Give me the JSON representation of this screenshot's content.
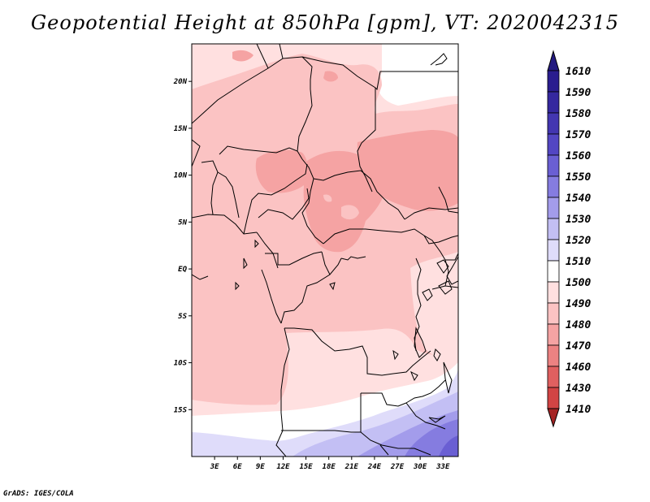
{
  "title": "Geopotential Height at 850hPa [gpm], VT: 2020042315",
  "credit": "GrADS: IGES/COLA",
  "map": {
    "lon_range": [
      0,
      35
    ],
    "lat_range": [
      -20,
      24
    ],
    "lat_ticks": [
      {
        "label": "20N",
        "value": 20
      },
      {
        "label": "15N",
        "value": 15
      },
      {
        "label": "10N",
        "value": 10
      },
      {
        "label": "5N",
        "value": 5
      },
      {
        "label": "EQ",
        "value": 0
      },
      {
        "label": "5S",
        "value": -5
      },
      {
        "label": "10S",
        "value": -10
      },
      {
        "label": "15S",
        "value": -15
      }
    ],
    "lon_ticks": [
      {
        "label": "3E",
        "value": 3
      },
      {
        "label": "6E",
        "value": 6
      },
      {
        "label": "9E",
        "value": 9
      },
      {
        "label": "12E",
        "value": 12
      },
      {
        "label": "15E",
        "value": 15
      },
      {
        "label": "18E",
        "value": 18
      },
      {
        "label": "21E",
        "value": 21
      },
      {
        "label": "24E",
        "value": 24
      },
      {
        "label": "27E",
        "value": 27
      },
      {
        "label": "30E",
        "value": 30
      },
      {
        "label": "33E",
        "value": 33
      }
    ]
  },
  "colorbar": {
    "levels": [
      {
        "label": "1610",
        "value": 1610,
        "color": "#2a1d8f"
      },
      {
        "label": "1590",
        "value": 1590,
        "color": "#35289f"
      },
      {
        "label": "1580",
        "value": 1580,
        "color": "#4336b1"
      },
      {
        "label": "1570",
        "value": 1570,
        "color": "#5346c3"
      },
      {
        "label": "1560",
        "value": 1560,
        "color": "#6a5fd3"
      },
      {
        "label": "1550",
        "value": 1550,
        "color": "#857ce0"
      },
      {
        "label": "1540",
        "value": 1540,
        "color": "#a39ceb"
      },
      {
        "label": "1530",
        "value": 1530,
        "color": "#c3bff4"
      },
      {
        "label": "1520",
        "value": 1520,
        "color": "#dfdcfa"
      },
      {
        "label": "1510",
        "value": 1510,
        "color": "#ffffff"
      },
      {
        "label": "1500",
        "value": 1500,
        "color": "#ffe0e0"
      },
      {
        "label": "1490",
        "value": 1490,
        "color": "#fbc3c3"
      },
      {
        "label": "1480",
        "value": 1480,
        "color": "#f5a3a3"
      },
      {
        "label": "1470",
        "value": 1470,
        "color": "#ec8282"
      },
      {
        "label": "1460",
        "value": 1460,
        "color": "#e06060"
      },
      {
        "label": "1430",
        "value": 1430,
        "color": "#d24444"
      },
      {
        "label": "1410",
        "value": 1410,
        "color": "#bc2e2e"
      }
    ],
    "top_color": "#231a80",
    "bottom_color": "#a52424"
  },
  "field_colors": {
    "pink_dark": "#f5a3a3",
    "pink_mid": "#fbc3c3",
    "pink_light": "#ffe0e0",
    "white": "#ffffff",
    "lav_light": "#dfdcfa",
    "lav_mid": "#c3bff4",
    "lav_dark": "#a39ceb",
    "violet": "#857ce0",
    "violet_dark": "#6a5fd3",
    "border": "#000000"
  }
}
